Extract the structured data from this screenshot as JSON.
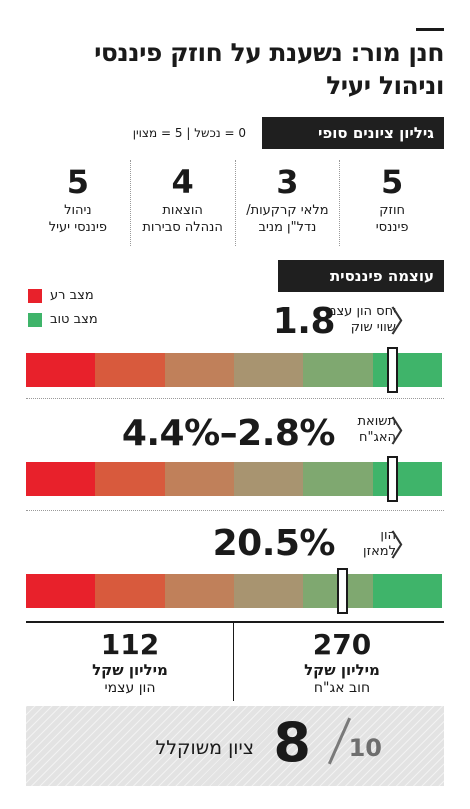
{
  "title": "חנן מור: נשענת על חוזק פיננסי וניהול יעיל",
  "grades_header": "גיליון ציונים סופי",
  "scale_legend": "0 = נכשל | 5 = מצוין",
  "grades": [
    {
      "value": "5",
      "label": "חוזק\nפיננסי"
    },
    {
      "value": "3",
      "label": "מלאי קרקעות/\nנדל\"ן מניב"
    },
    {
      "value": "4",
      "label": "הוצאות\nהנהלה סבירות"
    },
    {
      "value": "5",
      "label": "ניהול\nפיננסי יעיל"
    }
  ],
  "financial_header": "עוצמה פיננסית",
  "legend": {
    "bad_label": "מצב רע",
    "good_label": "מצב טוב",
    "bad_color": "#e8212b",
    "good_color": "#3fb46a"
  },
  "gauge_colors": [
    "#e8212b",
    "#d85a3d",
    "#c0805a",
    "#a89470",
    "#7fa870",
    "#3fb46a"
  ],
  "metrics": [
    {
      "label": "יחס הון עצמי\nשווי שוק",
      "value": "1.8",
      "chevron": "〈",
      "position": 0.88
    },
    {
      "label": "תשואת\nהאג\"ח",
      "value": "4.4%–2.8%",
      "chevron": "〈",
      "position": 0.88
    },
    {
      "label": "הון\nלמאזן",
      "value": "20.5%",
      "chevron": "〈",
      "position": 0.76
    }
  ],
  "totals": [
    {
      "value": "270",
      "unit": "מיליון שקל",
      "label": "חוב אג\"ח"
    },
    {
      "value": "112",
      "unit": "מיליון שקל",
      "label": "הון עצמי"
    }
  ],
  "final": {
    "label": "ציון משוקלל",
    "score": "8",
    "max": "10"
  }
}
